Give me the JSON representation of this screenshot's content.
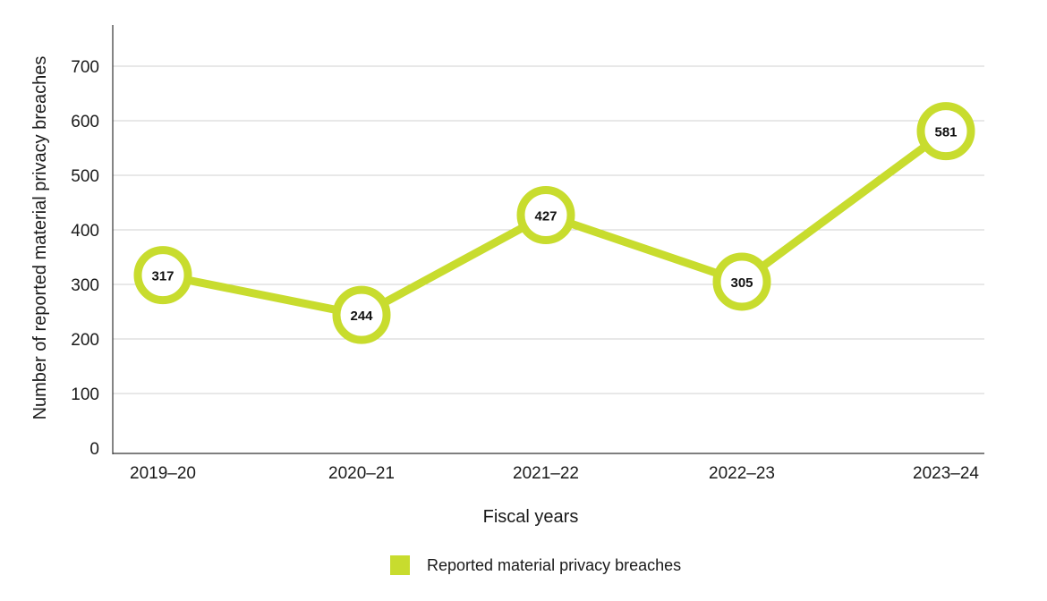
{
  "chart_data": {
    "type": "line",
    "title": "",
    "xlabel": "Fiscal years",
    "ylabel": "Number of reported material privacy breaches",
    "categories": [
      "2019–20",
      "2020–21",
      "2021–22",
      "2022–23",
      "2023–24"
    ],
    "series": [
      {
        "name": "Reported material privacy breaches",
        "values": [
          317,
          244,
          427,
          305,
          581
        ],
        "color": "#c8dc2e"
      }
    ],
    "ylim": [
      0,
      700
    ],
    "yticks": [
      0,
      100,
      200,
      300,
      400,
      500,
      600,
      700
    ],
    "grid": true,
    "legend_position": "bottom-center",
    "point_style": "hollow-circle-with-label"
  },
  "colors": {
    "series": "#c8dc2e",
    "grid": "#d0d0d0",
    "axis": "#333333",
    "text": "#1a1a1a"
  }
}
